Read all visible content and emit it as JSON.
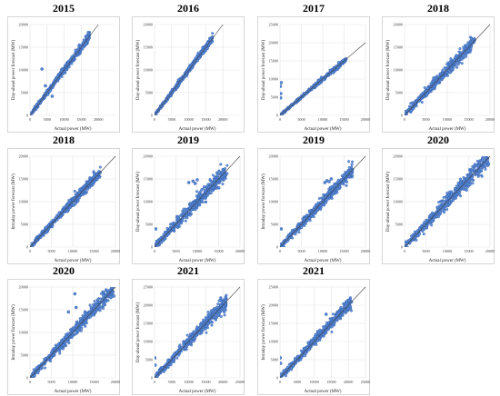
{
  "chart_data": [
    {
      "type": "scatter",
      "title": "2015",
      "xlabel": "Actual power (MW)",
      "ylabel": "Day-ahead power forecast (MW)",
      "xlim": [
        0,
        25000
      ],
      "ylim": [
        0,
        20000
      ],
      "xticks": [
        0,
        5000,
        10000,
        15000,
        20000
      ],
      "yticks": [
        0,
        5000,
        10000,
        15000,
        20000
      ],
      "xtick_labels": [
        "0",
        "5000",
        "10000",
        "15000",
        "20000"
      ],
      "ytick_labels": [
        "0",
        "5000",
        "10000",
        "15000",
        "20000"
      ],
      "trend": "y ≈ x",
      "cloud": {
        "x_range": [
          0,
          17500
        ],
        "spread": 900,
        "bend": 0.0
      },
      "outliers": [
        [
          3500,
          10200
        ],
        [
          5200,
          4600
        ],
        [
          6500,
          4200
        ],
        [
          4500,
          6500
        ]
      ],
      "reference_line": true,
      "grid": true
    },
    {
      "type": "scatter",
      "title": "2016",
      "xlabel": "Actual power (MW)",
      "ylabel": "Day-ahead power forecast (MW)",
      "xlim": [
        0,
        25000
      ],
      "ylim": [
        0,
        20000
      ],
      "xticks": [
        0,
        5000,
        10000,
        15000,
        20000
      ],
      "yticks": [
        0,
        5000,
        10000,
        15000,
        20000
      ],
      "xtick_labels": [
        "0",
        "5000",
        "10000",
        "15000",
        "20000"
      ],
      "ytick_labels": [
        "0",
        "5000",
        "10000",
        "15000",
        "20000"
      ],
      "trend": "y ≈ x",
      "cloud": {
        "x_range": [
          0,
          17000
        ],
        "spread": 700,
        "bend": 0.0
      },
      "outliers": [],
      "reference_line": true,
      "grid": true
    },
    {
      "type": "scatter",
      "title": "2017",
      "xlabel": "Actual power (MW)",
      "ylabel": "Day-ahead power forecast (MW)",
      "xlim": [
        0,
        20000
      ],
      "ylim": [
        0,
        25000
      ],
      "xticks": [
        0,
        5000,
        10000,
        15000,
        20000
      ],
      "yticks": [
        0,
        5000,
        10000,
        15000,
        20000,
        25000
      ],
      "xtick_labels": [
        "0",
        "5000",
        "10000",
        "15000",
        "20000"
      ],
      "ytick_labels": [
        "0",
        "5000",
        "10000",
        "15000",
        "20000",
        "25000"
      ],
      "trend": "y ≈ x",
      "cloud": {
        "x_range": [
          0,
          15500
        ],
        "spread": 600,
        "bend": 0.0
      },
      "outliers": [
        [
          100,
          8000
        ],
        [
          200,
          6000
        ],
        [
          150,
          4800
        ],
        [
          300,
          9000
        ]
      ],
      "reference_line": true,
      "grid": true
    },
    {
      "type": "scatter",
      "title": "2018",
      "xlabel": "Actual power (MW)",
      "ylabel": "Day-ahead power forecast (MW)",
      "xlim": [
        0,
        20000
      ],
      "ylim": [
        0,
        20000
      ],
      "xticks": [
        0,
        5000,
        10000,
        15000,
        20000
      ],
      "yticks": [
        0,
        5000,
        10000,
        15000,
        20000
      ],
      "xtick_labels": [
        "0",
        "5000",
        "10000",
        "15000",
        "20000"
      ],
      "ytick_labels": [
        "0",
        "5000",
        "10000",
        "15000",
        "20000"
      ],
      "trend": "y ≈ x",
      "cloud": {
        "x_range": [
          0,
          16500
        ],
        "spread": 1600,
        "bend": 0.0
      },
      "outliers": [],
      "reference_line": true,
      "grid": true
    },
    {
      "type": "scatter",
      "title": "2018",
      "xlabel": "Actual power (MW)",
      "ylabel": "Intraday power forecast (MW)",
      "xlim": [
        0,
        20000
      ],
      "ylim": [
        0,
        20000
      ],
      "xticks": [
        0,
        5000,
        10000,
        15000,
        20000
      ],
      "yticks": [
        0,
        5000,
        10000,
        15000,
        20000
      ],
      "xtick_labels": [
        "0",
        "5000",
        "10000",
        "15000",
        "20000"
      ],
      "ytick_labels": [
        "0",
        "5000",
        "10000",
        "15000",
        "20000"
      ],
      "trend": "y ≈ x",
      "cloud": {
        "x_range": [
          0,
          16500
        ],
        "spread": 1100,
        "bend": 0.0
      },
      "outliers": [],
      "reference_line": true,
      "grid": true
    },
    {
      "type": "scatter",
      "title": "2019",
      "xlabel": "Actual power (MW)",
      "ylabel": "Day-ahead power forecast (MW)",
      "xlim": [
        0,
        20000
      ],
      "ylim": [
        0,
        20000
      ],
      "xticks": [
        0,
        5000,
        10000,
        15000,
        20000
      ],
      "yticks": [
        0,
        5000,
        10000,
        15000,
        20000
      ],
      "xtick_labels": [
        "0",
        "5000",
        "10000",
        "15000",
        "20000"
      ],
      "ytick_labels": [
        "0",
        "5000",
        "10000",
        "15000",
        "20000"
      ],
      "trend": "y ≈ x",
      "cloud": {
        "x_range": [
          0,
          17000
        ],
        "spread": 1800,
        "bend": 0.0
      },
      "outliers": [
        [
          8000,
          14200
        ],
        [
          9000,
          14500
        ],
        [
          10000,
          14800
        ],
        [
          9500,
          14000
        ],
        [
          300,
          4000
        ],
        [
          600,
          500
        ]
      ],
      "reference_line": true,
      "grid": true
    },
    {
      "type": "scatter",
      "title": "2019",
      "xlabel": "Actual power (MW)",
      "ylabel": "Intraday power forecast (MW)",
      "xlim": [
        0,
        20000
      ],
      "ylim": [
        0,
        20000
      ],
      "xticks": [
        0,
        5000,
        10000,
        15000,
        20000
      ],
      "yticks": [
        0,
        5000,
        10000,
        15000,
        20000
      ],
      "xtick_labels": [
        "0",
        "5000",
        "10000",
        "15000",
        "20000"
      ],
      "ytick_labels": [
        "0",
        "5000",
        "10000",
        "15000",
        "20000"
      ],
      "trend": "y ≈ x",
      "cloud": {
        "x_range": [
          0,
          17000
        ],
        "spread": 1400,
        "bend": 0.0
      },
      "outliers": [
        [
          10500,
          14200
        ],
        [
          11000,
          14600
        ],
        [
          12000,
          15000
        ],
        [
          11500,
          14400
        ],
        [
          300,
          4000
        ]
      ],
      "reference_line": true,
      "grid": true
    },
    {
      "type": "scatter",
      "title": "2020",
      "xlabel": "Actual power (MW)",
      "ylabel": "Day-ahead power forecast (MW)",
      "xlim": [
        0,
        20000
      ],
      "ylim": [
        0,
        20000
      ],
      "xticks": [
        0,
        5000,
        10000,
        15000,
        20000
      ],
      "yticks": [
        0,
        5000,
        10000,
        15000,
        20000
      ],
      "xtick_labels": [
        "0",
        "5000",
        "10000",
        "15000",
        "20000"
      ],
      "ytick_labels": [
        "0",
        "5000",
        "10000",
        "15000",
        "20000"
      ],
      "trend": "y ≈ x",
      "cloud": {
        "x_range": [
          0,
          19500
        ],
        "spread": 1900,
        "bend": 0.0
      },
      "outliers": [
        [
          19500,
          18000
        ],
        [
          19800,
          18300
        ]
      ],
      "reference_line": true,
      "grid": true
    },
    {
      "type": "scatter",
      "title": "2020",
      "xlabel": "Actual power (MW)",
      "ylabel": "Intraday power forecast (MW)",
      "xlim": [
        0,
        20000
      ],
      "ylim": [
        0,
        20000
      ],
      "xticks": [
        0,
        5000,
        10000,
        15000,
        20000
      ],
      "yticks": [
        0,
        5000,
        10000,
        15000,
        20000
      ],
      "xtick_labels": [
        "0",
        "5000",
        "10000",
        "15000",
        "20000"
      ],
      "ytick_labels": [
        "0",
        "5000",
        "10000",
        "15000",
        "20000"
      ],
      "trend": "y ≈ x",
      "cloud": {
        "x_range": [
          0,
          19500
        ],
        "spread": 1600,
        "bend": 0.0
      },
      "outliers": [
        [
          10500,
          18500
        ],
        [
          10800,
          15500
        ],
        [
          9000,
          14500
        ],
        [
          19000,
          17800
        ],
        [
          19600,
          18000
        ]
      ],
      "reference_line": true,
      "grid": true
    },
    {
      "type": "scatter",
      "title": "2021",
      "xlabel": "Actual power (MW)",
      "ylabel": "Day-ahead power forecast (MW)",
      "xlim": [
        0,
        25000
      ],
      "ylim": [
        0,
        25000
      ],
      "xticks": [
        0,
        5000,
        10000,
        15000,
        20000,
        25000
      ],
      "yticks": [
        0,
        5000,
        10000,
        15000,
        20000,
        25000
      ],
      "xtick_labels": [
        "0",
        "5000",
        "10000",
        "15000",
        "20000",
        "25000"
      ],
      "ytick_labels": [
        "0",
        "5000",
        "10000",
        "15000",
        "20000",
        "25000"
      ],
      "trend": "y ≈ x",
      "cloud": {
        "x_range": [
          0,
          21000
        ],
        "spread": 2000,
        "bend": 0.0
      },
      "outliers": [
        [
          100,
          5500
        ],
        [
          200,
          3500
        ]
      ],
      "reference_line": true,
      "grid": true
    },
    {
      "type": "scatter",
      "title": "2021",
      "xlabel": "Actual power (MW)",
      "ylabel": "Intraday power forecast (MW)",
      "xlim": [
        0,
        25000
      ],
      "ylim": [
        0,
        25000
      ],
      "xticks": [
        0,
        5000,
        10000,
        15000,
        20000,
        25000
      ],
      "yticks": [
        0,
        5000,
        10000,
        15000,
        20000,
        25000
      ],
      "xtick_labels": [
        "0",
        "5000",
        "10000",
        "15000",
        "20000",
        "25000"
      ],
      "ytick_labels": [
        "0",
        "5000",
        "10000",
        "15000",
        "20000",
        "25000"
      ],
      "trend": "y ≈ x",
      "cloud": {
        "x_range": [
          0,
          21000
        ],
        "spread": 1700,
        "bend": 0.0
      },
      "outliers": [
        [
          100,
          5500
        ],
        [
          200,
          4000
        ],
        [
          13500,
          17500
        ]
      ],
      "reference_line": true,
      "grid": true
    }
  ],
  "colors": {
    "point_fill": "#5b8bd6",
    "point_stroke": "#2e5aa8",
    "reference_line": "#404040",
    "grid": "#e3e3e3",
    "axis_text": "#404040"
  }
}
